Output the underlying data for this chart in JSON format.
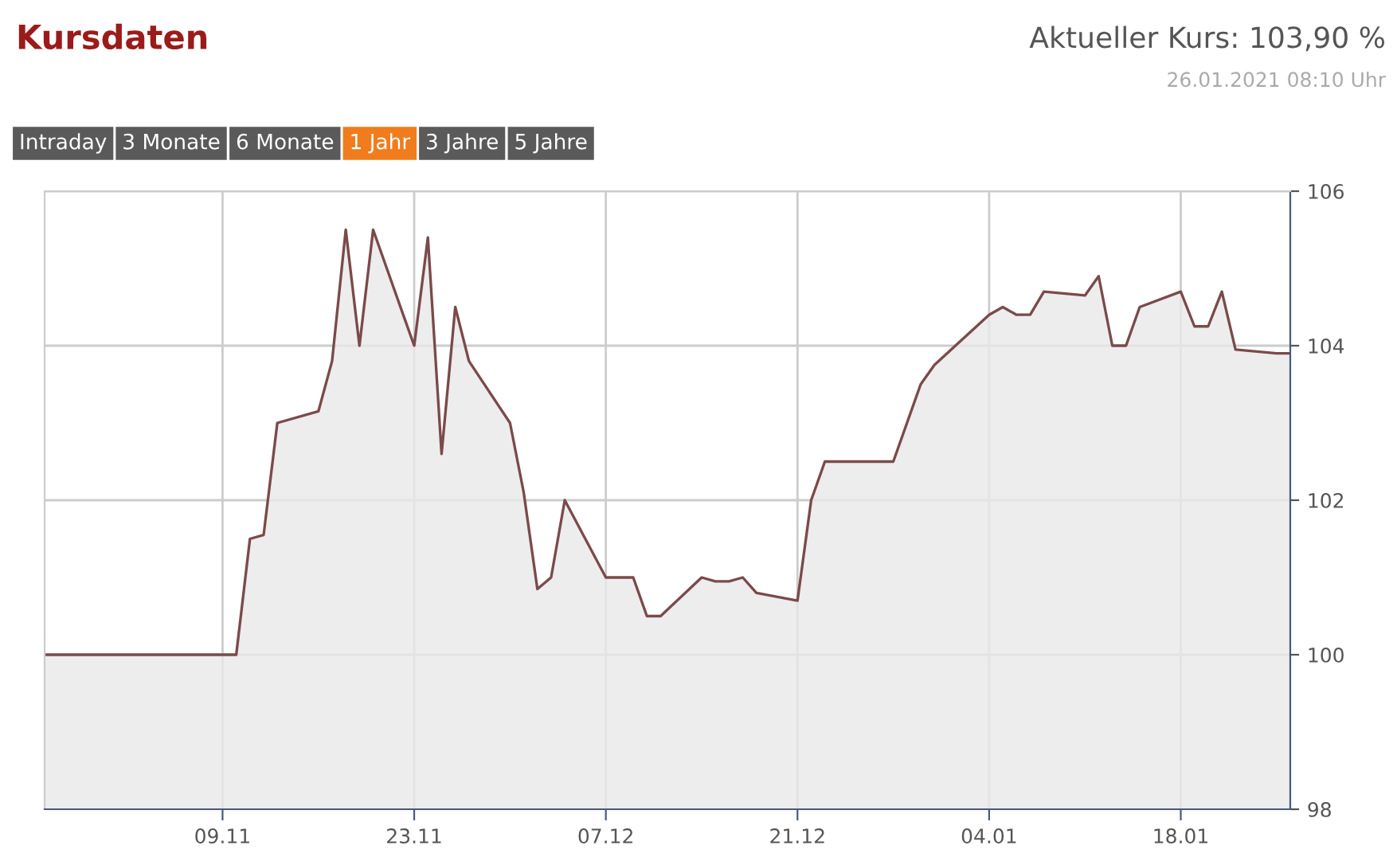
{
  "chart_data": {
    "type": "area",
    "title": "Kursdaten",
    "annotations": [
      "Aktueller Kurs: 103,90 %",
      "26.01.2021 08:10 Uhr",
      "Intraday",
      "3 Monate",
      "6 Monate",
      "1 Jahr",
      "3 Jahre",
      "5 Jahre"
    ],
    "x": [
      "2020-10-27",
      "2020-11-10",
      "2020-11-11",
      "2020-11-12",
      "2020-11-13",
      "2020-11-16",
      "2020-11-17",
      "2020-11-18",
      "2020-11-19",
      "2020-11-20",
      "2020-11-23",
      "2020-11-24",
      "2020-11-25",
      "2020-11-26",
      "2020-11-27",
      "2020-11-30",
      "2020-12-01",
      "2020-12-02",
      "2020-12-03",
      "2020-12-04",
      "2020-12-07",
      "2020-12-09",
      "2020-12-10",
      "2020-12-11",
      "2020-12-14",
      "2020-12-15",
      "2020-12-16",
      "2020-12-17",
      "2020-12-18",
      "2020-12-21",
      "2020-12-22",
      "2020-12-23",
      "2020-12-28",
      "2020-12-30",
      "2020-12-31",
      "2021-01-04",
      "2021-01-05",
      "2021-01-06",
      "2021-01-07",
      "2021-01-08",
      "2021-01-11",
      "2021-01-12",
      "2021-01-13",
      "2021-01-14",
      "2021-01-15",
      "2021-01-18",
      "2021-01-19",
      "2021-01-20",
      "2021-01-21",
      "2021-01-22",
      "2021-01-25",
      "2021-01-26"
    ],
    "series": [
      {
        "color": "#7b4a4a",
        "values": [
          100,
          100,
          101.5,
          101.55,
          103.0,
          103.15,
          103.8,
          105.5,
          104.0,
          105.5,
          104.0,
          105.4,
          102.6,
          104.5,
          103.8,
          103.0,
          102.1,
          100.85,
          101.0,
          102.0,
          101.0,
          101.0,
          100.5,
          100.5,
          101.0,
          100.95,
          100.95,
          101.0,
          100.8,
          100.7,
          102.0,
          102.5,
          102.5,
          103.5,
          103.75,
          104.4,
          104.5,
          104.4,
          104.4,
          104.7,
          104.65,
          104.9,
          104.0,
          104.0,
          104.5,
          104.7,
          104.25,
          104.25,
          104.7,
          103.95,
          103.9,
          103.9
        ]
      }
    ],
    "xlim": [
      "2020-10-27",
      "2021-01-26"
    ],
    "xticks": [
      {
        "value": "2020-11-09",
        "label": "09.11"
      },
      {
        "value": "2020-11-23",
        "label": "23.11"
      },
      {
        "value": "2020-12-07",
        "label": "07.12"
      },
      {
        "value": "2020-12-21",
        "label": "21.12"
      },
      {
        "value": "2021-01-04",
        "label": "04.01"
      },
      {
        "value": "2021-01-18",
        "label": "18.01"
      }
    ],
    "ylim": [
      98,
      106
    ],
    "yticks": [
      98,
      100,
      102,
      104,
      106
    ],
    "grid": true,
    "legend": false
  }
}
